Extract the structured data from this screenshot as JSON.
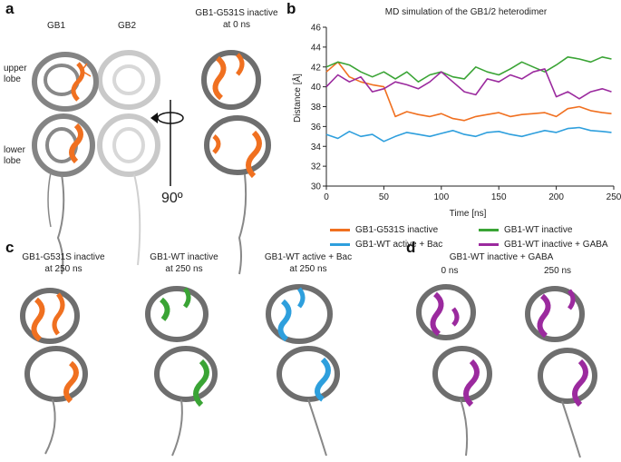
{
  "panels": {
    "a": {
      "label": "a",
      "gb1": "GB1",
      "gb2": "GB2",
      "upper_lobe": [
        "upper",
        "lobe"
      ],
      "lower_lobe": [
        "lower",
        "lobe"
      ],
      "rotation": "90º",
      "title": [
        "GB1-G531S inactive",
        "at 0 ns"
      ]
    },
    "b": {
      "label": "b"
    },
    "c": {
      "label": "c",
      "captions": [
        [
          "GB1-G531S inactive",
          "at 250 ns"
        ],
        [
          "GB1-WT inactive",
          "at 250 ns"
        ],
        [
          "GB1-WT active + Bac",
          "at 250 ns"
        ]
      ]
    },
    "d": {
      "label": "d",
      "title": "GB1-WT inactive + GABA",
      "times": [
        "0 ns",
        "250 ns"
      ]
    }
  },
  "colors": {
    "orange": "#F07020",
    "green": "#3AA435",
    "blue": "#2E9FDD",
    "purple": "#9B2A9E",
    "protein": "#6e6e6e"
  },
  "chart_data": {
    "type": "line",
    "title": "MD simulation of the GB1/2 heterodimer",
    "xlabel": "Time [ns]",
    "ylabel": "Distance [Å]",
    "xlim": [
      0,
      250
    ],
    "ylim": [
      30,
      46
    ],
    "xticks": [
      0,
      50,
      100,
      150,
      200,
      250
    ],
    "yticks": [
      30,
      32,
      34,
      36,
      38,
      40,
      42,
      44,
      46
    ],
    "grid": false,
    "legend_position": "bottom",
    "x": [
      0,
      10,
      20,
      30,
      40,
      50,
      60,
      70,
      80,
      90,
      100,
      110,
      120,
      130,
      140,
      150,
      160,
      170,
      180,
      190,
      200,
      210,
      220,
      230,
      240,
      248
    ],
    "series": [
      {
        "name": "GB1-G531S inactive",
        "color": "#F07020",
        "values": [
          41.5,
          42.5,
          41.0,
          40.5,
          40.2,
          40.0,
          37.0,
          37.5,
          37.2,
          37.0,
          37.3,
          36.8,
          36.6,
          37.0,
          37.2,
          37.4,
          37.0,
          37.2,
          37.3,
          37.4,
          37.0,
          37.8,
          38.0,
          37.6,
          37.4,
          37.3
        ]
      },
      {
        "name": "GB1-WT inactive",
        "color": "#3AA435",
        "values": [
          42.0,
          42.5,
          42.2,
          41.5,
          41.0,
          41.5,
          40.8,
          41.5,
          40.5,
          41.2,
          41.5,
          41.0,
          40.8,
          42.0,
          41.5,
          41.2,
          41.8,
          42.5,
          42.0,
          41.5,
          42.2,
          43.0,
          42.8,
          42.5,
          43.0,
          42.8
        ]
      },
      {
        "name": "GB1-WT active + Bac",
        "color": "#2E9FDD",
        "values": [
          35.2,
          34.8,
          35.5,
          35.0,
          35.2,
          34.5,
          35.0,
          35.4,
          35.2,
          35.0,
          35.3,
          35.6,
          35.2,
          35.0,
          35.4,
          35.5,
          35.2,
          35.0,
          35.3,
          35.6,
          35.4,
          35.8,
          35.9,
          35.6,
          35.5,
          35.4
        ]
      },
      {
        "name": "GB1-WT inactive + GABA",
        "color": "#9B2A9E",
        "values": [
          40.0,
          41.2,
          40.5,
          41.0,
          39.5,
          39.8,
          40.5,
          40.2,
          39.8,
          40.5,
          41.5,
          40.5,
          39.5,
          39.2,
          40.8,
          40.5,
          41.2,
          40.8,
          41.5,
          41.8,
          39.0,
          39.5,
          38.8,
          39.5,
          39.8,
          39.5
        ]
      }
    ]
  }
}
